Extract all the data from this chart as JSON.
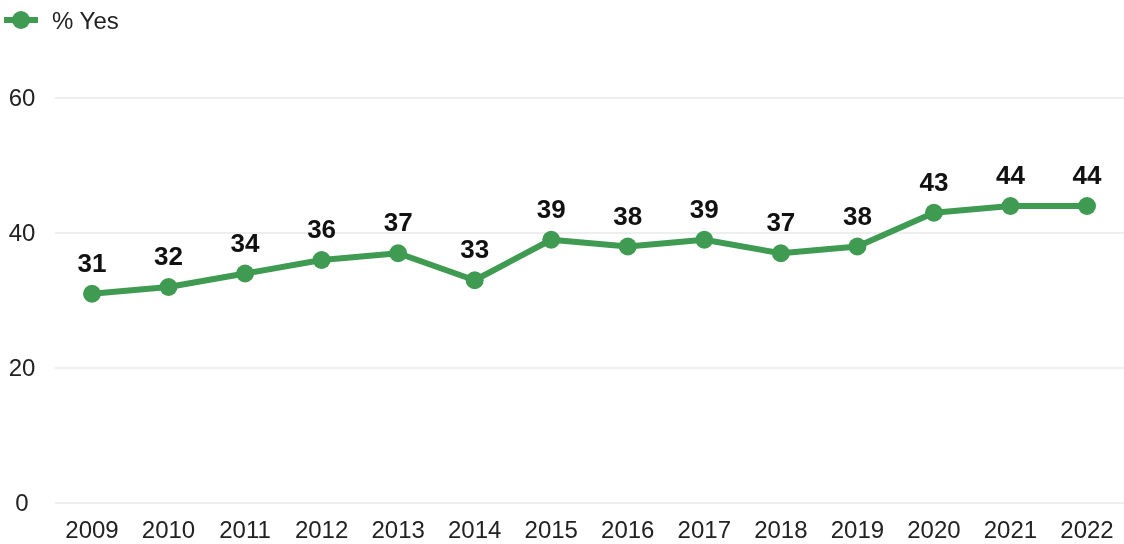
{
  "chart_data": {
    "type": "line",
    "categories": [
      "2009",
      "2010",
      "2011",
      "2012",
      "2013",
      "2014",
      "2015",
      "2016",
      "2017",
      "2018",
      "2019",
      "2020",
      "2021",
      "2022"
    ],
    "series": [
      {
        "name": "% Yes",
        "color": "#3f9a52",
        "values": [
          31,
          32,
          34,
          36,
          37,
          33,
          39,
          38,
          39,
          37,
          38,
          43,
          44,
          44
        ]
      }
    ],
    "ylim": [
      0,
      60
    ],
    "yticks": [
      0,
      20,
      40,
      60
    ],
    "grid": "y",
    "legend": "top left",
    "marker": "circle",
    "line_style": "solid",
    "data_labels": true
  }
}
